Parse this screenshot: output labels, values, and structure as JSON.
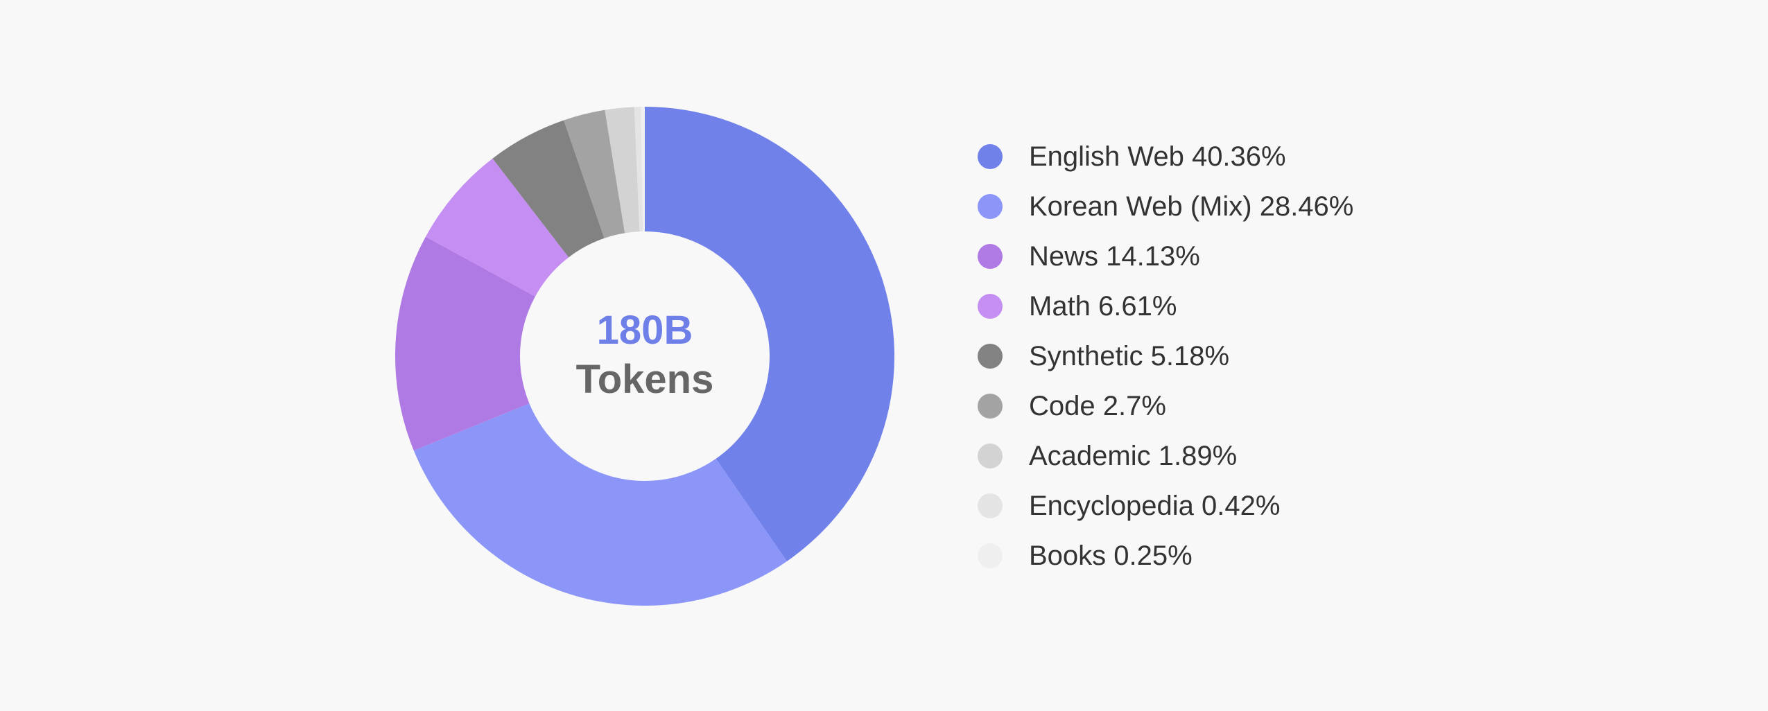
{
  "center": {
    "number": "180B",
    "label": "Tokens"
  },
  "chart_data": {
    "type": "pie",
    "style": "donut",
    "start_angle": "12 o'clock",
    "direction": "clockwise",
    "legend_position": "right",
    "unit": "%",
    "slices": [
      {
        "label": "English Web",
        "value": 40.36,
        "color": "#7181ea",
        "legend_text": "English Web 40.36%"
      },
      {
        "label": "Korean Web (Mix)",
        "value": 28.46,
        "color": "#8b96f8",
        "legend_text": "Korean Web (Mix) 28.46%"
      },
      {
        "label": "News",
        "value": 14.13,
        "color": "#b07ae5",
        "legend_text": "News 14.13%"
      },
      {
        "label": "Math",
        "value": 6.61,
        "color": "#c58ef3",
        "legend_text": "Math 6.61%"
      },
      {
        "label": "Synthetic",
        "value": 5.18,
        "color": "#828282",
        "legend_text": "Synthetic 5.18%"
      },
      {
        "label": "Code",
        "value": 2.7,
        "color": "#a3a3a3",
        "legend_text": "Code 2.7%"
      },
      {
        "label": "Academic",
        "value": 1.89,
        "color": "#d3d3d3",
        "legend_text": "Academic 1.89%"
      },
      {
        "label": "Encyclopedia",
        "value": 0.42,
        "color": "#e4e4e4",
        "legend_text": "Encyclopedia 0.42%"
      },
      {
        "label": "Books",
        "value": 0.25,
        "color": "#efefef",
        "legend_text": "Books 0.25%"
      }
    ]
  }
}
